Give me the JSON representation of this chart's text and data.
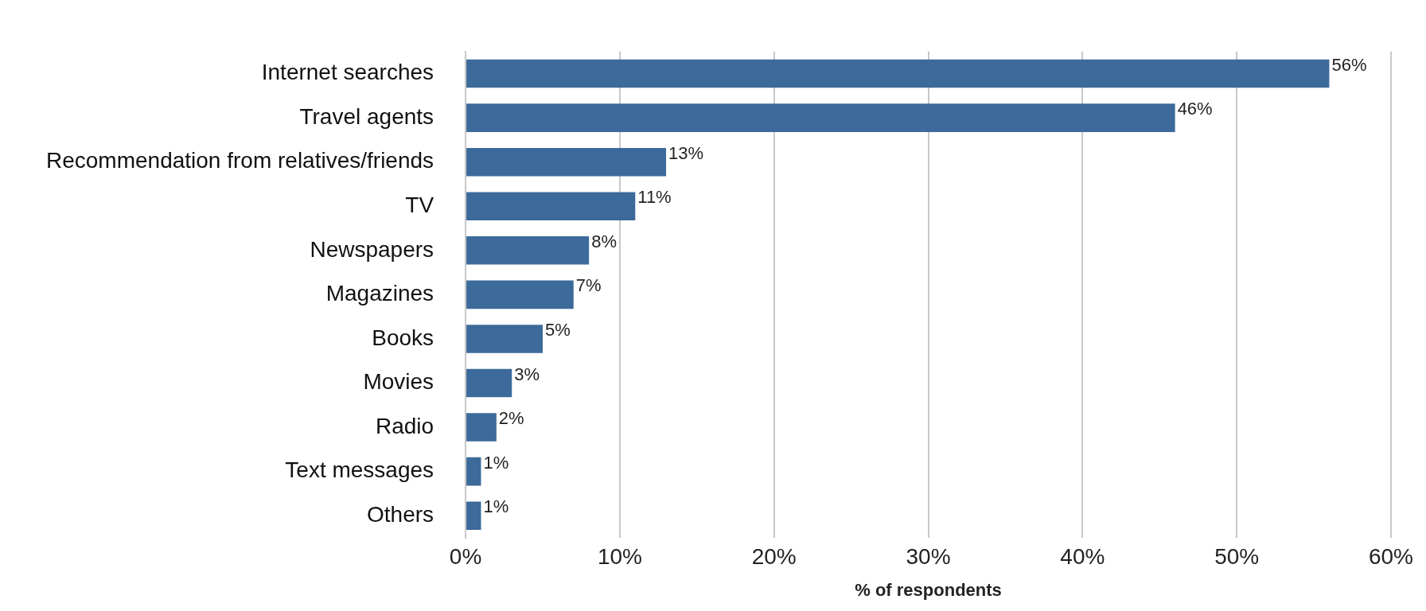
{
  "chart_data": {
    "type": "bar",
    "orientation": "horizontal",
    "xlabel": "% of respondents",
    "categories": [
      "Internet searches",
      "Travel agents",
      "Recommendation from relatives/friends",
      "TV",
      "Newspapers",
      "Magazines",
      "Books",
      "Movies",
      "Radio",
      "Text messages",
      "Others"
    ],
    "values": [
      56,
      46,
      13,
      11,
      8,
      7,
      5,
      3,
      2,
      1,
      1
    ],
    "value_labels": [
      "56%",
      "46%",
      "13%",
      "11%",
      "8%",
      "7%",
      "5%",
      "3%",
      "2%",
      "1%",
      "1%"
    ],
    "color": "#3c6a9a",
    "xlim": [
      0,
      60
    ],
    "xticks": [
      {
        "value": 0,
        "label": "0%"
      },
      {
        "value": 10,
        "label": "10%"
      },
      {
        "value": 20,
        "label": "20%"
      },
      {
        "value": 30,
        "label": "30%"
      },
      {
        "value": 40,
        "label": "40%"
      },
      {
        "value": 50,
        "label": "50%"
      },
      {
        "value": 60,
        "label": "60%"
      }
    ],
    "grid": "x"
  }
}
